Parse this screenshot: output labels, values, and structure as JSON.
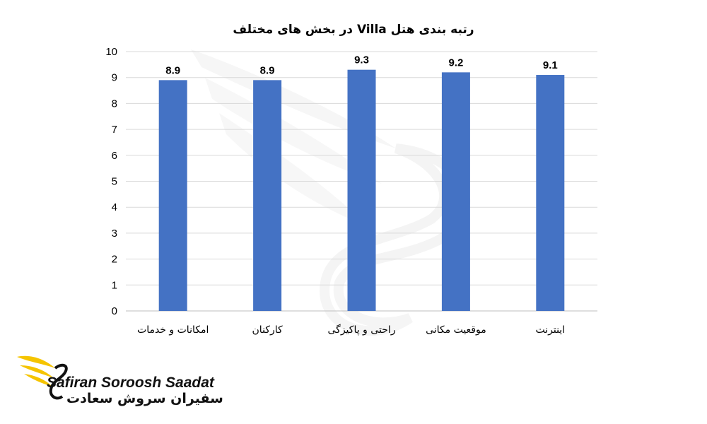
{
  "chart_data": {
    "type": "bar",
    "title": "رتبه بندی هتل Villa در بخش های مختلف",
    "categories": [
      "امکانات و خدمات",
      "کارکنان",
      "راحتی و پاکیزگی",
      "موقعیت مکانی",
      "اینترنت"
    ],
    "values": [
      8.9,
      8.9,
      9.3,
      9.2,
      9.1
    ],
    "data_labels": [
      "8.9",
      "8.9",
      "9.3",
      "9.2",
      "9.1"
    ],
    "ylim": [
      0,
      10
    ],
    "yticks": [
      0,
      1,
      2,
      3,
      4,
      5,
      6,
      7,
      8,
      9,
      10
    ],
    "grid": true,
    "legend": "none",
    "bar_color": "#4472c4"
  },
  "branding": {
    "name_latin": "Safiran Soroosh Saadat",
    "name_persian": "سفیران سروش سعادت",
    "logo_icon": "wing-swan-icon",
    "logo_color": "#f5c400"
  }
}
